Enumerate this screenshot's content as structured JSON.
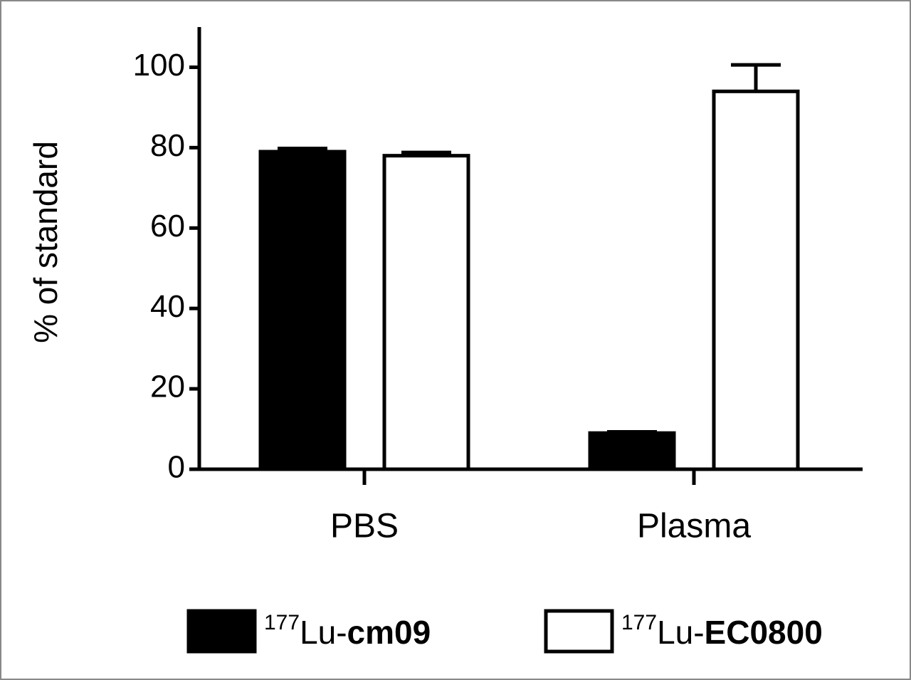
{
  "chart_data": {
    "type": "bar",
    "y_label": "% of standard",
    "categories": [
      "PBS",
      "Plasma"
    ],
    "series": [
      {
        "name": "177Lu-cm09",
        "color": "#000000",
        "values": [
          79,
          9
        ],
        "errors": [
          0.8,
          0.3
        ]
      },
      {
        "name": "177Lu-EC0800",
        "color": "#ffffff",
        "values": [
          78,
          94
        ],
        "errors": [
          0.8,
          6.6
        ]
      }
    ],
    "ylim": [
      0,
      110
    ],
    "yticks": [
      0,
      20,
      40,
      60,
      80,
      100
    ],
    "grid": false
  }
}
